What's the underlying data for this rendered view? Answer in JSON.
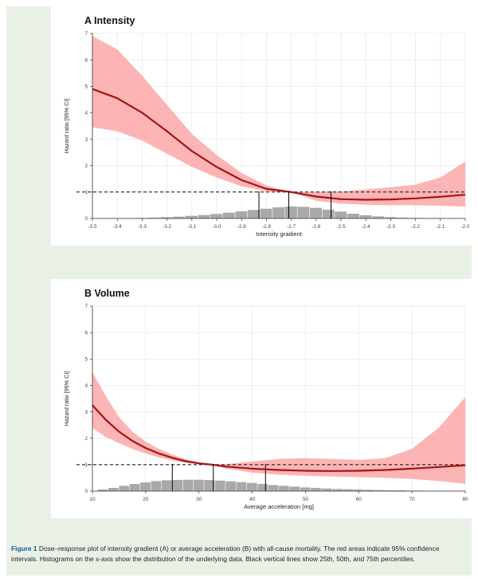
{
  "chart_data": [
    {
      "type": "line",
      "title": "A  Intensity",
      "xlabel": "Intensity gradient",
      "ylabel": "Hazard ratio [95% CI]",
      "xlim": [
        -3.5,
        -2.0
      ],
      "ylim": [
        0,
        7
      ],
      "x_ticks": [
        "-3.5",
        "-3.4",
        "-3.3",
        "-3.2",
        "-3.1",
        "-3.0",
        "-2.9",
        "-2.8",
        "-2.7",
        "-2.6",
        "-2.5",
        "-2.4",
        "-2.3",
        "-2.2",
        "-2.1",
        "-2.0"
      ],
      "y_ticks": [
        "0",
        "1",
        "2",
        "3",
        "4",
        "5",
        "6",
        "7"
      ],
      "grid": true,
      "reference_line": 1,
      "line_color": "#a31515",
      "band_color": "#fca7a7",
      "series": [
        {
          "x": [
            -3.5,
            -3.4,
            -3.3,
            -3.2,
            -3.1,
            -3.0,
            -2.9,
            -2.8,
            -2.7,
            -2.6,
            -2.5,
            -2.4,
            -2.3,
            -2.2,
            -2.1,
            -2.0
          ],
          "values": [
            4.9,
            4.55,
            4.0,
            3.3,
            2.55,
            1.95,
            1.45,
            1.12,
            1.0,
            0.83,
            0.73,
            0.71,
            0.72,
            0.76,
            0.82,
            0.9
          ],
          "lower": [
            3.45,
            3.3,
            2.95,
            2.45,
            1.95,
            1.55,
            1.22,
            1.03,
            1.0,
            0.67,
            0.56,
            0.52,
            0.5,
            0.5,
            0.48,
            0.45
          ],
          "upper": [
            6.9,
            6.4,
            5.4,
            4.3,
            3.2,
            2.4,
            1.72,
            1.25,
            1.0,
            1.0,
            1.02,
            1.1,
            1.18,
            1.28,
            1.55,
            2.15
          ]
        }
      ],
      "histogram": {
        "x": [
          -3.35,
          -3.3,
          -3.25,
          -3.2,
          -3.15,
          -3.1,
          -3.05,
          -3.0,
          -2.95,
          -2.9,
          -2.85,
          -2.8,
          -2.75,
          -2.7,
          -2.65,
          -2.6,
          -2.55,
          -2.5,
          -2.45,
          -2.4,
          -2.35,
          -2.3,
          -2.25,
          -2.2,
          -2.15,
          -2.1
        ],
        "values": [
          0.01,
          0.02,
          0.03,
          0.05,
          0.07,
          0.1,
          0.13,
          0.17,
          0.22,
          0.27,
          0.32,
          0.37,
          0.42,
          0.45,
          0.44,
          0.4,
          0.33,
          0.26,
          0.18,
          0.12,
          0.08,
          0.05,
          0.03,
          0.02,
          0.01,
          0.01
        ]
      },
      "percentiles": [
        -2.83,
        -2.71,
        -2.54
      ]
    },
    {
      "type": "line",
      "title": "B  Volume",
      "xlabel": "Average acceleration [mg]",
      "ylabel": "Hazard ratio [95% CI]",
      "xlim": [
        10,
        80
      ],
      "ylim": [
        0,
        7
      ],
      "x_ticks": [
        "10",
        "20",
        "30",
        "40",
        "50",
        "60",
        "70",
        "80"
      ],
      "y_ticks": [
        "0",
        "1",
        "2",
        "3",
        "4",
        "5",
        "6",
        "7"
      ],
      "grid": true,
      "reference_line": 1,
      "line_color": "#a31515",
      "band_color": "#fca7a7",
      "series": [
        {
          "x": [
            10,
            12.5,
            15,
            17.5,
            20,
            22.5,
            25,
            27.5,
            30,
            32.5,
            35,
            40,
            45,
            50,
            55,
            60,
            65,
            70,
            75,
            80
          ],
          "values": [
            3.25,
            2.7,
            2.25,
            1.9,
            1.63,
            1.42,
            1.26,
            1.13,
            1.05,
            1.0,
            0.93,
            0.85,
            0.8,
            0.77,
            0.76,
            0.77,
            0.8,
            0.85,
            0.91,
            0.98
          ],
          "lower": [
            2.4,
            2.05,
            1.82,
            1.6,
            1.42,
            1.27,
            1.16,
            1.07,
            1.02,
            1.0,
            0.85,
            0.7,
            0.62,
            0.58,
            0.55,
            0.53,
            0.5,
            0.46,
            0.38,
            0.28
          ],
          "upper": [
            4.5,
            3.6,
            2.8,
            2.25,
            1.87,
            1.6,
            1.38,
            1.21,
            1.09,
            1.0,
            1.02,
            1.12,
            1.22,
            1.25,
            1.22,
            1.18,
            1.25,
            1.6,
            2.4,
            3.55
          ]
        }
      ],
      "histogram": {
        "x": [
          12,
          14,
          16,
          18,
          20,
          22,
          24,
          26,
          28,
          30,
          32,
          34,
          36,
          38,
          40,
          42,
          44,
          46,
          48,
          50,
          52,
          54,
          56,
          58,
          60,
          62,
          64,
          66,
          68,
          70,
          72,
          74,
          76,
          78
        ],
        "values": [
          0.06,
          0.12,
          0.2,
          0.27,
          0.33,
          0.38,
          0.41,
          0.42,
          0.43,
          0.43,
          0.42,
          0.4,
          0.37,
          0.34,
          0.31,
          0.27,
          0.23,
          0.2,
          0.17,
          0.14,
          0.12,
          0.1,
          0.08,
          0.07,
          0.06,
          0.05,
          0.04,
          0.03,
          0.03,
          0.02,
          0.02,
          0.01,
          0.01,
          0.01
        ]
      },
      "percentiles": [
        25,
        32.7,
        42.5
      ]
    }
  ],
  "caption": {
    "label": "Figure 1",
    "text": "Dose–response plot of intensity gradient (A) or average acceleration (B) with all-cause mortality. The red areas indicate 95% confidence intervals. Histograms on the x-axis show the distribution of the underlying data. Black vertical lines show 25th, 50th, and 75th percentiles."
  }
}
